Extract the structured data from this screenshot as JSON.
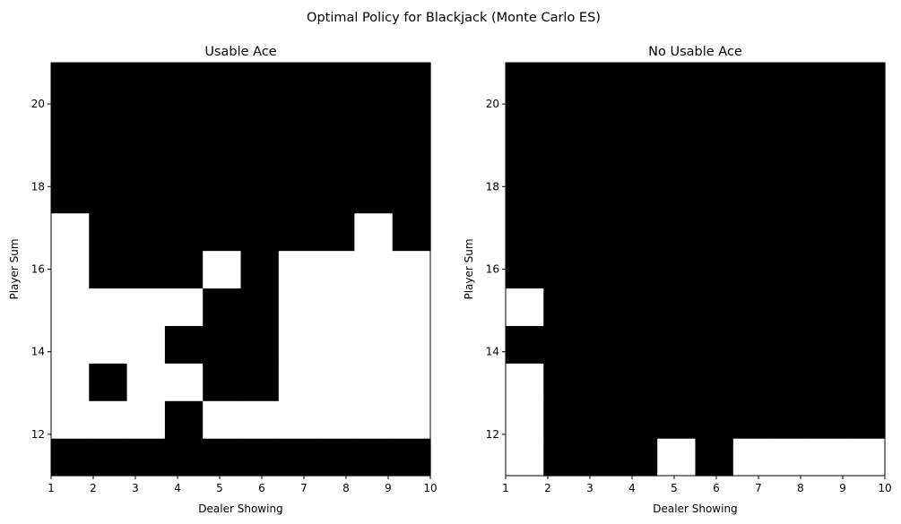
{
  "figure_title": "Optimal Policy for Blackjack (Monte Carlo ES)",
  "colors": {
    "stick": "#000000",
    "hit": "#ffffff"
  },
  "chart_data": [
    {
      "type": "heatmap",
      "title": "Usable Ace",
      "xlabel": "Dealer Showing",
      "ylabel": "Player Sum",
      "xlim": [
        1,
        10
      ],
      "ylim": [
        11,
        21
      ],
      "xticks": [
        1,
        2,
        3,
        4,
        5,
        6,
        7,
        8,
        9,
        10
      ],
      "yticks": [
        12,
        14,
        16,
        18,
        20
      ],
      "grid": false,
      "rows_player_sum": [
        11,
        12,
        13,
        14,
        15,
        16,
        17,
        18,
        19,
        20,
        21
      ],
      "columns_dealer_showing": [
        1,
        2,
        3,
        4,
        5,
        6,
        7,
        8,
        9,
        10
      ],
      "policy": [
        [
          1,
          1,
          1,
          1,
          1,
          1,
          1,
          1,
          1,
          1
        ],
        [
          0,
          0,
          0,
          1,
          0,
          0,
          0,
          0,
          0,
          0
        ],
        [
          0,
          1,
          0,
          0,
          1,
          1,
          0,
          0,
          0,
          0
        ],
        [
          0,
          0,
          0,
          1,
          1,
          1,
          0,
          0,
          0,
          0
        ],
        [
          0,
          0,
          0,
          0,
          1,
          1,
          0,
          0,
          0,
          0
        ],
        [
          0,
          1,
          1,
          1,
          0,
          1,
          0,
          0,
          0,
          0
        ],
        [
          0,
          1,
          1,
          1,
          1,
          1,
          1,
          1,
          0,
          1
        ],
        [
          1,
          1,
          1,
          1,
          1,
          1,
          1,
          1,
          1,
          1
        ],
        [
          1,
          1,
          1,
          1,
          1,
          1,
          1,
          1,
          1,
          1
        ],
        [
          1,
          1,
          1,
          1,
          1,
          1,
          1,
          1,
          1,
          1
        ],
        [
          1,
          1,
          1,
          1,
          1,
          1,
          1,
          1,
          1,
          1
        ]
      ]
    },
    {
      "type": "heatmap",
      "title": "No Usable Ace",
      "xlabel": "Dealer Showing",
      "ylabel": "Player Sum",
      "xlim": [
        1,
        10
      ],
      "ylim": [
        11,
        21
      ],
      "xticks": [
        1,
        2,
        3,
        4,
        5,
        6,
        7,
        8,
        9,
        10
      ],
      "yticks": [
        12,
        14,
        16,
        18,
        20
      ],
      "grid": false,
      "rows_player_sum": [
        11,
        12,
        13,
        14,
        15,
        16,
        17,
        18,
        19,
        20,
        21
      ],
      "columns_dealer_showing": [
        1,
        2,
        3,
        4,
        5,
        6,
        7,
        8,
        9,
        10
      ],
      "policy": [
        [
          0,
          1,
          1,
          1,
          0,
          1,
          0,
          0,
          0,
          0
        ],
        [
          0,
          1,
          1,
          1,
          1,
          1,
          1,
          1,
          1,
          1
        ],
        [
          0,
          1,
          1,
          1,
          1,
          1,
          1,
          1,
          1,
          1
        ],
        [
          1,
          1,
          1,
          1,
          1,
          1,
          1,
          1,
          1,
          1
        ],
        [
          0,
          1,
          1,
          1,
          1,
          1,
          1,
          1,
          1,
          1
        ],
        [
          1,
          1,
          1,
          1,
          1,
          1,
          1,
          1,
          1,
          1
        ],
        [
          1,
          1,
          1,
          1,
          1,
          1,
          1,
          1,
          1,
          1
        ],
        [
          1,
          1,
          1,
          1,
          1,
          1,
          1,
          1,
          1,
          1
        ],
        [
          1,
          1,
          1,
          1,
          1,
          1,
          1,
          1,
          1,
          1
        ],
        [
          1,
          1,
          1,
          1,
          1,
          1,
          1,
          1,
          1,
          1
        ],
        [
          1,
          1,
          1,
          1,
          1,
          1,
          1,
          1,
          1,
          1
        ]
      ]
    }
  ]
}
